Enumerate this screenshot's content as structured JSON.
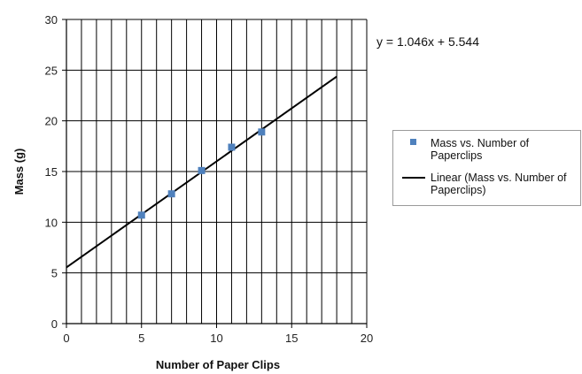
{
  "chart_data": {
    "type": "scatter",
    "xlabel": "Number of Paper Clips",
    "ylabel": "Mass (g)",
    "xlim": [
      0,
      20
    ],
    "ylim": [
      0,
      30
    ],
    "x_ticks": [
      0,
      5,
      10,
      15,
      20
    ],
    "y_ticks": [
      0,
      5,
      10,
      15,
      20,
      25,
      30
    ],
    "x_minor_gridline_step": 1,
    "y_gridline_step": 5,
    "grid": true,
    "legend_position": "right",
    "series": [
      {
        "name": "Mass vs. Number of Paperclips",
        "type": "scatter",
        "color": "#4f81bd",
        "marker": "square",
        "x": [
          5,
          7,
          9,
          11,
          13
        ],
        "y": [
          10.7,
          12.8,
          15.1,
          17.4,
          18.9
        ]
      },
      {
        "name": "Linear (Mass vs. Number of Paperclips)",
        "type": "line",
        "color": "#000000",
        "slope": 1.046,
        "intercept": 5.544,
        "x_range": [
          0,
          18
        ]
      }
    ],
    "annotations": [
      {
        "text": "y = 1.046x + 5.544"
      }
    ]
  }
}
